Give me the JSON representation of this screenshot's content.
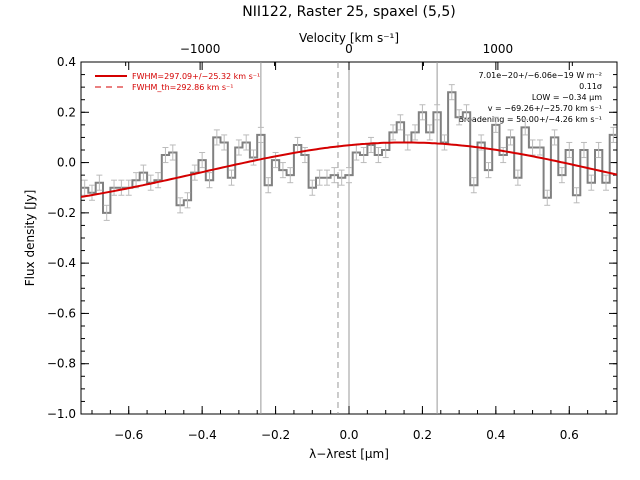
{
  "chart_data": {
    "type": "line",
    "title": "NII122, Raster 25, spaxel (5,5)",
    "xlabel": "λ−λrest [μm]",
    "ylabel": "Flux density [Jy]",
    "top_xlabel": "Velocity [km s⁻¹]",
    "xlim": [
      -0.73,
      0.73
    ],
    "ylim": [
      -1.0,
      0.4
    ],
    "top_xlim": [
      -1800,
      1800
    ],
    "x_ticks": [
      -0.6,
      -0.4,
      -0.2,
      0.0,
      0.2,
      0.4,
      0.6
    ],
    "x_tick_labels": [
      "−0.6",
      "−0.4",
      "−0.2",
      "0.0",
      "0.2",
      "0.4",
      "0.6"
    ],
    "y_ticks": [
      -1.0,
      -0.8,
      -0.6,
      -0.4,
      -0.2,
      0.0,
      0.2,
      0.4
    ],
    "y_tick_labels": [
      "−1.0",
      "−0.8",
      "−0.6",
      "−0.4",
      "−0.2",
      "0.0",
      "0.2",
      "0.4"
    ],
    "top_ticks": [
      -1000,
      0,
      1000
    ],
    "top_tick_labels": [
      "−1000",
      "0",
      "1000"
    ],
    "vertical_lines": [
      {
        "x": -0.24,
        "style": "solid"
      },
      {
        "x": -0.03,
        "style": "dashed"
      },
      {
        "x": 0.0,
        "style": "solid"
      },
      {
        "x": 0.24,
        "style": "solid"
      }
    ],
    "series": [
      {
        "name": "",
        "kind": "step_with_errors",
        "color": "#808080",
        "x": [
          -0.72,
          -0.7,
          -0.68,
          -0.66,
          -0.64,
          -0.62,
          -0.6,
          -0.58,
          -0.56,
          -0.54,
          -0.52,
          -0.5,
          -0.48,
          -0.46,
          -0.44,
          -0.42,
          -0.4,
          -0.38,
          -0.36,
          -0.34,
          -0.32,
          -0.3,
          -0.28,
          -0.26,
          -0.24,
          -0.22,
          -0.2,
          -0.18,
          -0.16,
          -0.14,
          -0.12,
          -0.1,
          -0.08,
          -0.06,
          -0.04,
          -0.02,
          0.0,
          0.02,
          0.04,
          0.06,
          0.08,
          0.1,
          0.12,
          0.14,
          0.16,
          0.18,
          0.2,
          0.22,
          0.24,
          0.26,
          0.28,
          0.3,
          0.32,
          0.34,
          0.36,
          0.38,
          0.4,
          0.42,
          0.44,
          0.46,
          0.48,
          0.5,
          0.52,
          0.54,
          0.56,
          0.58,
          0.6,
          0.62,
          0.64,
          0.66,
          0.68,
          0.7,
          0.72
        ],
        "y": [
          -0.1,
          -0.12,
          -0.08,
          -0.2,
          -0.1,
          -0.1,
          -0.1,
          -0.07,
          -0.04,
          -0.08,
          -0.07,
          0.03,
          0.04,
          -0.17,
          -0.15,
          -0.04,
          0.01,
          -0.07,
          0.1,
          0.08,
          -0.06,
          0.06,
          0.08,
          0.02,
          0.11,
          -0.09,
          0.01,
          -0.03,
          -0.05,
          0.07,
          0.03,
          -0.1,
          -0.06,
          -0.06,
          -0.05,
          -0.06,
          -0.05,
          0.04,
          0.03,
          0.07,
          0.03,
          0.05,
          0.12,
          0.16,
          0.08,
          0.12,
          0.2,
          0.12,
          0.2,
          0.08,
          0.28,
          0.18,
          0.2,
          -0.09,
          0.08,
          -0.03,
          0.15,
          0.03,
          0.1,
          -0.06,
          0.14,
          0.06,
          0.06,
          -0.14,
          0.1,
          -0.05,
          0.05,
          -0.13,
          0.05,
          -0.08,
          0.05,
          -0.08,
          0.11
        ],
        "err": 0.03
      },
      {
        "name": "FWHM=297.09+/−25.32 km s⁻¹",
        "kind": "gaussian_fit",
        "color": "#d40000",
        "amplitude": 0.3,
        "center": 0.15,
        "sigma": 0.55,
        "baseline": -0.22
      }
    ],
    "legend": {
      "placement": "top-left",
      "entries": [
        {
          "label": "FWHM=297.09+/−25.32 km s⁻¹",
          "style": "solid",
          "color": "#d40000"
        },
        {
          "label": "FWHM_th=292.86 km s⁻¹",
          "style": "dashed",
          "color": "#d40000"
        }
      ]
    },
    "annotations": [
      "7.01e−20+/−6.06e−19 W m⁻²",
      "0.11σ",
      "LOW = −0.34 μm",
      "v = −69.26+/−25.70 km s⁻¹",
      "Broadening = 50.00+/−4.26 km s⁻¹"
    ],
    "grid": false
  }
}
